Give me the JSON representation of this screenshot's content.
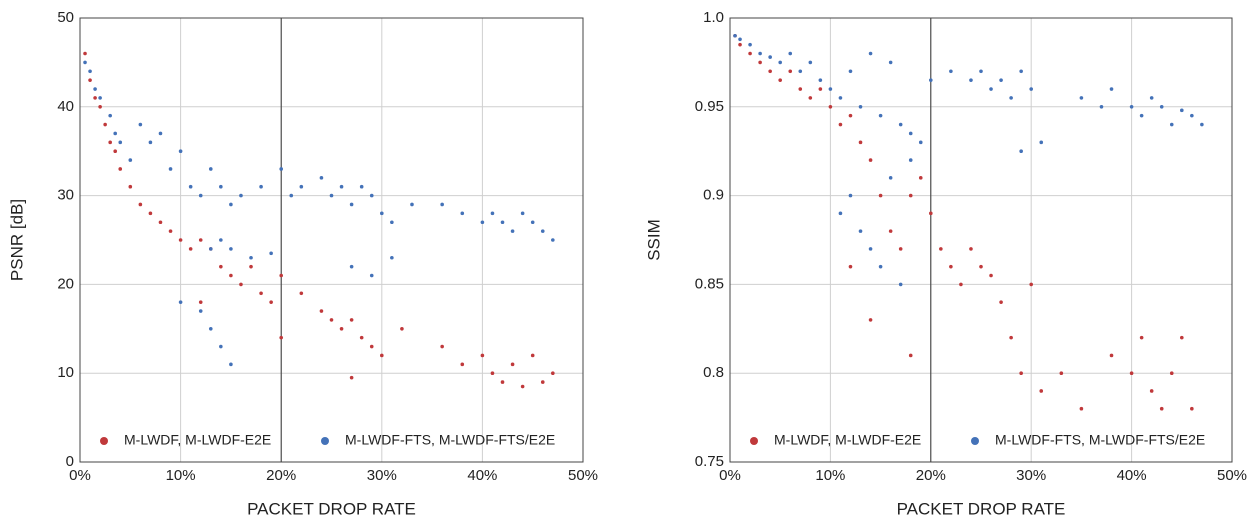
{
  "chart_data": [
    {
      "type": "scatter",
      "xlabel": "PACKET DROP RATE",
      "ylabel": "PSNR [dB]",
      "xlim": [
        0,
        50
      ],
      "ylim": [
        0,
        50
      ],
      "xticks": [
        {
          "value": 0,
          "label": "0%"
        },
        {
          "value": 10,
          "label": "10%"
        },
        {
          "value": 20,
          "label": "20%"
        },
        {
          "value": 30,
          "label": "30%"
        },
        {
          "value": 40,
          "label": "40%"
        },
        {
          "value": 50,
          "label": "50%"
        }
      ],
      "yticks": [
        0,
        10,
        20,
        30,
        40,
        50
      ],
      "grid": true,
      "vline": 20,
      "legend": "lower center",
      "series": [
        {
          "name": "M-LWDF, M-LWDF-E2E",
          "color": "#c0393b",
          "x": [
            0.5,
            1,
            1.5,
            2,
            2.5,
            3,
            3.5,
            4,
            5,
            6,
            7,
            8,
            9,
            10,
            11,
            12,
            13,
            14,
            15,
            16,
            17,
            18,
            19,
            20,
            22,
            24,
            25,
            26,
            27,
            28,
            29,
            30,
            32,
            36,
            38,
            40,
            41,
            42,
            43,
            44,
            45,
            46,
            47,
            12,
            20,
            27
          ],
          "values": [
            46,
            43,
            41,
            40,
            38,
            36,
            35,
            33,
            31,
            29,
            28,
            27,
            26,
            25,
            24,
            25,
            24,
            22,
            21,
            20,
            22,
            19,
            18,
            21,
            19,
            17,
            16,
            15,
            16,
            14,
            13,
            12,
            15,
            13,
            11,
            12,
            10,
            9,
            11,
            8.5,
            12,
            9,
            10,
            18,
            14,
            9.5
          ]
        },
        {
          "name": "M-LWDF-FTS, M-LWDF-FTS/E2E",
          "color": "#4472b8",
          "x": [
            0.5,
            1,
            1.5,
            2,
            3,
            3.5,
            4,
            5,
            6,
            7,
            8,
            9,
            10,
            11,
            12,
            13,
            14,
            15,
            16,
            18,
            20,
            21,
            22,
            24,
            25,
            26,
            27,
            28,
            29,
            30,
            31,
            33,
            36,
            38,
            40,
            41,
            42,
            43,
            44,
            45,
            46,
            47,
            13,
            14,
            15,
            17,
            19,
            12,
            13,
            14,
            15,
            10,
            27,
            29,
            31
          ],
          "values": [
            45,
            44,
            42,
            41,
            39,
            37,
            36,
            34,
            38,
            36,
            37,
            33,
            35,
            31,
            30,
            33,
            31,
            29,
            30,
            31,
            33,
            30,
            31,
            32,
            30,
            31,
            29,
            31,
            30,
            28,
            27,
            29,
            29,
            28,
            27,
            28,
            27,
            26,
            28,
            27,
            26,
            25,
            24,
            25,
            24,
            23,
            23.5,
            17,
            15,
            13,
            11,
            18,
            22,
            21,
            23
          ]
        }
      ]
    },
    {
      "type": "scatter",
      "xlabel": "PACKET DROP RATE",
      "ylabel": "SSIM",
      "xlim": [
        0,
        50
      ],
      "ylim": [
        0.75,
        1
      ],
      "xticks": [
        {
          "value": 0,
          "label": "0%"
        },
        {
          "value": 10,
          "label": "10%"
        },
        {
          "value": 20,
          "label": "20%"
        },
        {
          "value": 30,
          "label": "30%"
        },
        {
          "value": 40,
          "label": "40%"
        },
        {
          "value": 50,
          "label": "50%"
        }
      ],
      "yticks": [
        0.75,
        0.8,
        0.85,
        0.9,
        0.95,
        {
          "value": 1,
          "label": "1.0"
        }
      ],
      "grid": true,
      "vline": 20,
      "legend": "lower center",
      "series": [
        {
          "name": "M-LWDF, M-LWDF-E2E",
          "color": "#c0393b",
          "x": [
            0.5,
            1,
            2,
            3,
            4,
            5,
            6,
            7,
            8,
            9,
            10,
            11,
            12,
            13,
            14,
            15,
            16,
            17,
            18,
            19,
            20,
            21,
            22,
            23,
            24,
            25,
            26,
            27,
            28,
            29,
            30,
            31,
            33,
            35,
            38,
            40,
            41,
            42,
            43,
            44,
            45,
            46,
            12,
            14,
            18
          ],
          "values": [
            0.99,
            0.985,
            0.98,
            0.975,
            0.97,
            0.965,
            0.97,
            0.96,
            0.955,
            0.96,
            0.95,
            0.94,
            0.945,
            0.93,
            0.92,
            0.9,
            0.88,
            0.87,
            0.9,
            0.91,
            0.89,
            0.87,
            0.86,
            0.85,
            0.87,
            0.86,
            0.855,
            0.84,
            0.82,
            0.8,
            0.85,
            0.79,
            0.8,
            0.78,
            0.81,
            0.8,
            0.82,
            0.79,
            0.78,
            0.8,
            0.82,
            0.78,
            0.86,
            0.83,
            0.81
          ]
        },
        {
          "name": "M-LWDF-FTS, M-LWDF-FTS/E2E",
          "color": "#4472b8",
          "x": [
            0.5,
            1,
            2,
            3,
            4,
            5,
            6,
            7,
            8,
            9,
            10,
            11,
            12,
            13,
            14,
            15,
            16,
            17,
            18,
            19,
            20,
            22,
            24,
            25,
            26,
            27,
            28,
            29,
            30,
            31,
            29,
            35,
            37,
            38,
            40,
            41,
            42,
            43,
            44,
            45,
            46,
            47,
            11,
            12,
            13,
            14,
            15,
            17,
            18,
            16
          ],
          "values": [
            0.99,
            0.988,
            0.985,
            0.98,
            0.978,
            0.975,
            0.98,
            0.97,
            0.975,
            0.965,
            0.96,
            0.955,
            0.97,
            0.95,
            0.98,
            0.945,
            0.975,
            0.94,
            0.935,
            0.93,
            0.965,
            0.97,
            0.965,
            0.97,
            0.96,
            0.965,
            0.955,
            0.97,
            0.96,
            0.93,
            0.925,
            0.955,
            0.95,
            0.96,
            0.95,
            0.945,
            0.955,
            0.95,
            0.94,
            0.948,
            0.945,
            0.94,
            0.89,
            0.9,
            0.88,
            0.87,
            0.86,
            0.85,
            0.92,
            0.91
          ]
        }
      ]
    }
  ]
}
